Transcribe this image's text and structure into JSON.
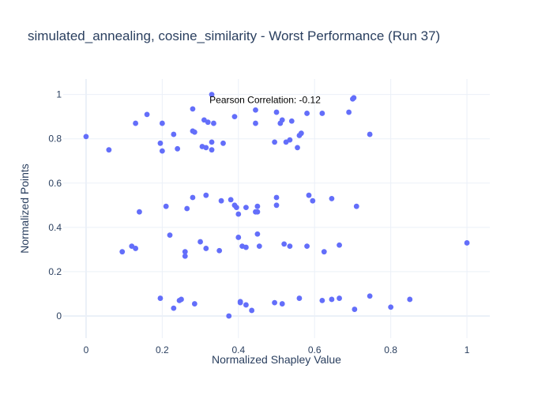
{
  "chart_data": {
    "type": "scatter",
    "title": "simulated_annealing, cosine_similarity - Worst Performance (Run 37)",
    "xlabel": "Normalized Shapley Value",
    "ylabel": "Normalized Points",
    "xlim": [
      -0.06,
      1.06
    ],
    "ylim": [
      -0.1,
      1.07
    ],
    "xticks": [
      0,
      0.2,
      0.4,
      0.6,
      0.8,
      1
    ],
    "xtick_labels": [
      "0",
      "0.2",
      "0.4",
      "0.6",
      "0.8",
      "1"
    ],
    "yticks": [
      0,
      0.2,
      0.4,
      0.6,
      0.8,
      1
    ],
    "ytick_labels": [
      "0",
      "0.2",
      "0.4",
      "0.6",
      "0.8",
      "1"
    ],
    "grid": true,
    "marker_color": "#636efa",
    "annotation": {
      "text": "Pearson Correlation: -0.12",
      "x": 0.47,
      "y": 0.975
    },
    "points": [
      {
        "x": 0.0,
        "y": 0.81
      },
      {
        "x": 0.06,
        "y": 0.75
      },
      {
        "x": 0.13,
        "y": 0.87
      },
      {
        "x": 0.16,
        "y": 0.91
      },
      {
        "x": 0.195,
        "y": 0.78
      },
      {
        "x": 0.2,
        "y": 0.745
      },
      {
        "x": 0.2,
        "y": 0.87
      },
      {
        "x": 0.23,
        "y": 0.82
      },
      {
        "x": 0.24,
        "y": 0.755
      },
      {
        "x": 0.28,
        "y": 0.935
      },
      {
        "x": 0.28,
        "y": 0.835
      },
      {
        "x": 0.285,
        "y": 0.83
      },
      {
        "x": 0.305,
        "y": 0.765
      },
      {
        "x": 0.31,
        "y": 0.885
      },
      {
        "x": 0.315,
        "y": 0.76
      },
      {
        "x": 0.32,
        "y": 0.875
      },
      {
        "x": 0.33,
        "y": 0.785
      },
      {
        "x": 0.33,
        "y": 0.75
      },
      {
        "x": 0.33,
        "y": 1.0
      },
      {
        "x": 0.335,
        "y": 0.87
      },
      {
        "x": 0.36,
        "y": 0.78
      },
      {
        "x": 0.39,
        "y": 0.9
      },
      {
        "x": 0.445,
        "y": 0.93
      },
      {
        "x": 0.445,
        "y": 0.87
      },
      {
        "x": 0.495,
        "y": 0.785
      },
      {
        "x": 0.5,
        "y": 0.92
      },
      {
        "x": 0.51,
        "y": 0.87
      },
      {
        "x": 0.515,
        "y": 0.885
      },
      {
        "x": 0.525,
        "y": 0.785
      },
      {
        "x": 0.535,
        "y": 0.795
      },
      {
        "x": 0.54,
        "y": 0.88
      },
      {
        "x": 0.555,
        "y": 0.76
      },
      {
        "x": 0.56,
        "y": 0.815
      },
      {
        "x": 0.565,
        "y": 0.825
      },
      {
        "x": 0.58,
        "y": 0.915
      },
      {
        "x": 0.62,
        "y": 0.915
      },
      {
        "x": 0.69,
        "y": 0.92
      },
      {
        "x": 0.7,
        "y": 0.98
      },
      {
        "x": 0.703,
        "y": 0.985
      },
      {
        "x": 0.745,
        "y": 0.82
      },
      {
        "x": 0.14,
        "y": 0.47
      },
      {
        "x": 0.21,
        "y": 0.495
      },
      {
        "x": 0.265,
        "y": 0.485
      },
      {
        "x": 0.28,
        "y": 0.535
      },
      {
        "x": 0.315,
        "y": 0.545
      },
      {
        "x": 0.355,
        "y": 0.52
      },
      {
        "x": 0.38,
        "y": 0.525
      },
      {
        "x": 0.39,
        "y": 0.5
      },
      {
        "x": 0.395,
        "y": 0.49
      },
      {
        "x": 0.4,
        "y": 0.46
      },
      {
        "x": 0.42,
        "y": 0.49
      },
      {
        "x": 0.445,
        "y": 0.47
      },
      {
        "x": 0.45,
        "y": 0.47
      },
      {
        "x": 0.45,
        "y": 0.495
      },
      {
        "x": 0.5,
        "y": 0.535
      },
      {
        "x": 0.5,
        "y": 0.5
      },
      {
        "x": 0.585,
        "y": 0.545
      },
      {
        "x": 0.595,
        "y": 0.52
      },
      {
        "x": 0.645,
        "y": 0.53
      },
      {
        "x": 0.71,
        "y": 0.495
      },
      {
        "x": 0.095,
        "y": 0.29
      },
      {
        "x": 0.12,
        "y": 0.315
      },
      {
        "x": 0.13,
        "y": 0.305
      },
      {
        "x": 0.22,
        "y": 0.365
      },
      {
        "x": 0.26,
        "y": 0.29
      },
      {
        "x": 0.26,
        "y": 0.27
      },
      {
        "x": 0.3,
        "y": 0.335
      },
      {
        "x": 0.315,
        "y": 0.305
      },
      {
        "x": 0.35,
        "y": 0.295
      },
      {
        "x": 0.4,
        "y": 0.355
      },
      {
        "x": 0.41,
        "y": 0.315
      },
      {
        "x": 0.42,
        "y": 0.31
      },
      {
        "x": 0.45,
        "y": 0.37
      },
      {
        "x": 0.455,
        "y": 0.315
      },
      {
        "x": 0.52,
        "y": 0.325
      },
      {
        "x": 0.535,
        "y": 0.315
      },
      {
        "x": 0.58,
        "y": 0.315
      },
      {
        "x": 0.625,
        "y": 0.29
      },
      {
        "x": 0.665,
        "y": 0.32
      },
      {
        "x": 1.0,
        "y": 0.33
      },
      {
        "x": 0.195,
        "y": 0.08
      },
      {
        "x": 0.23,
        "y": 0.035
      },
      {
        "x": 0.245,
        "y": 0.07
      },
      {
        "x": 0.25,
        "y": 0.075
      },
      {
        "x": 0.285,
        "y": 0.055
      },
      {
        "x": 0.375,
        "y": 0.0
      },
      {
        "x": 0.405,
        "y": 0.065
      },
      {
        "x": 0.405,
        "y": 0.06
      },
      {
        "x": 0.42,
        "y": 0.05
      },
      {
        "x": 0.435,
        "y": 0.025
      },
      {
        "x": 0.495,
        "y": 0.06
      },
      {
        "x": 0.515,
        "y": 0.055
      },
      {
        "x": 0.56,
        "y": 0.08
      },
      {
        "x": 0.62,
        "y": 0.07
      },
      {
        "x": 0.645,
        "y": 0.075
      },
      {
        "x": 0.665,
        "y": 0.08
      },
      {
        "x": 0.705,
        "y": 0.03
      },
      {
        "x": 0.745,
        "y": 0.09
      },
      {
        "x": 0.8,
        "y": 0.04
      },
      {
        "x": 0.85,
        "y": 0.075
      }
    ]
  }
}
